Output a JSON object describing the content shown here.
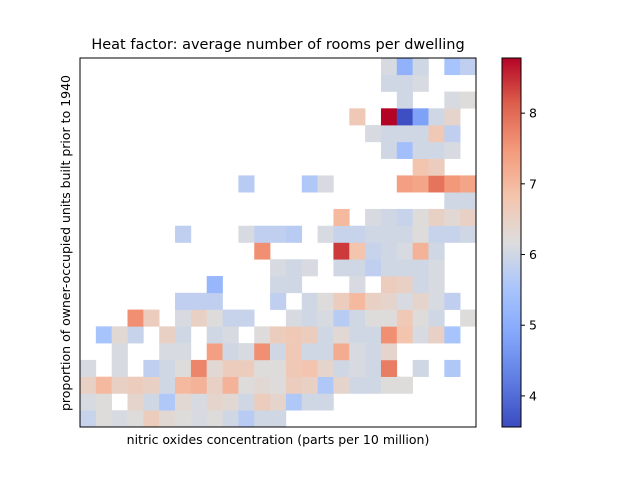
{
  "chart_data": {
    "type": "heatmap",
    "title": "Heat factor: average number of rooms per dwelling",
    "xlabel": "nitric oxides concentration (parts per 10 million)",
    "ylabel": "proportion of owner-occupied units built prior to 1940",
    "x_ticks": "none",
    "y_ticks": "none",
    "colormap": "coolwarm",
    "grid": "off",
    "colorbar": {
      "placement": "right",
      "vmin": 3.56,
      "vmax": 8.78,
      "ticks": [
        "4",
        "5",
        "6",
        "7",
        "8"
      ]
    },
    "n_cols": 25,
    "n_rows": 22,
    "cells": [
      [
        0,
        0,
        5.9
      ],
      [
        1,
        0,
        6.2
      ],
      [
        2,
        0,
        6.1
      ],
      [
        3,
        0,
        6.2
      ],
      [
        4,
        0,
        6.6
      ],
      [
        5,
        0,
        6.3
      ],
      [
        6,
        0,
        6.2
      ],
      [
        7,
        0,
        6.1
      ],
      [
        8,
        0,
        6.2
      ],
      [
        9,
        0,
        6.0
      ],
      [
        10,
        0,
        5.7
      ],
      [
        11,
        0,
        6.0
      ],
      [
        12,
        0,
        6.0
      ],
      [
        0,
        1,
        6.1
      ],
      [
        1,
        1,
        6.2
      ],
      [
        3,
        1,
        6.4
      ],
      [
        4,
        1,
        6.0
      ],
      [
        5,
        1,
        5.6
      ],
      [
        6,
        1,
        6.3
      ],
      [
        7,
        1,
        6.1
      ],
      [
        8,
        1,
        6.4
      ],
      [
        9,
        1,
        6.3
      ],
      [
        10,
        1,
        6.0
      ],
      [
        11,
        1,
        6.6
      ],
      [
        12,
        1,
        6.4
      ],
      [
        13,
        1,
        5.6
      ],
      [
        14,
        1,
        6.0
      ],
      [
        15,
        1,
        6.0
      ],
      [
        0,
        2,
        6.5
      ],
      [
        1,
        2,
        7.0
      ],
      [
        2,
        2,
        6.5
      ],
      [
        3,
        2,
        6.6
      ],
      [
        4,
        2,
        6.5
      ],
      [
        5,
        2,
        6.0
      ],
      [
        6,
        2,
        7.0
      ],
      [
        7,
        2,
        7.1
      ],
      [
        8,
        2,
        6.5
      ],
      [
        9,
        2,
        7.1
      ],
      [
        10,
        2,
        6.2
      ],
      [
        11,
        2,
        6.3
      ],
      [
        12,
        2,
        6.2
      ],
      [
        13,
        2,
        6.6
      ],
      [
        14,
        2,
        6.5
      ],
      [
        15,
        2,
        5.6
      ],
      [
        16,
        2,
        6.4
      ],
      [
        17,
        2,
        6.0
      ],
      [
        18,
        2,
        6.0
      ],
      [
        19,
        2,
        6.2
      ],
      [
        20,
        2,
        6.2
      ],
      [
        0,
        3,
        6.1
      ],
      [
        2,
        3,
        6.1
      ],
      [
        4,
        3,
        5.8
      ],
      [
        5,
        3,
        6.0
      ],
      [
        6,
        3,
        6.2
      ],
      [
        7,
        3,
        7.7
      ],
      [
        8,
        3,
        6.3
      ],
      [
        9,
        3,
        6.6
      ],
      [
        10,
        3,
        6.6
      ],
      [
        11,
        3,
        6.2
      ],
      [
        12,
        3,
        6.2
      ],
      [
        13,
        3,
        6.7
      ],
      [
        14,
        3,
        6.8
      ],
      [
        15,
        3,
        6.4
      ],
      [
        16,
        3,
        6.0
      ],
      [
        17,
        3,
        6.1
      ],
      [
        18,
        3,
        6.0
      ],
      [
        19,
        3,
        7.8
      ],
      [
        21,
        3,
        6.0
      ],
      [
        23,
        3,
        5.6
      ],
      [
        2,
        4,
        6.1
      ],
      [
        5,
        4,
        6.1
      ],
      [
        6,
        4,
        6.1
      ],
      [
        8,
        4,
        7.4
      ],
      [
        9,
        4,
        6.0
      ],
      [
        10,
        4,
        6.1
      ],
      [
        11,
        4,
        7.6
      ],
      [
        12,
        4,
        6.0
      ],
      [
        13,
        4,
        6.7
      ],
      [
        14,
        4,
        6.0
      ],
      [
        15,
        4,
        6.0
      ],
      [
        16,
        4,
        7.2
      ],
      [
        17,
        4,
        6.1
      ],
      [
        18,
        4,
        6.0
      ],
      [
        19,
        4,
        6.4
      ],
      [
        1,
        5,
        5.5
      ],
      [
        2,
        5,
        6.3
      ],
      [
        3,
        5,
        5.9
      ],
      [
        5,
        5,
        6.5
      ],
      [
        6,
        5,
        6.0
      ],
      [
        8,
        5,
        6.0
      ],
      [
        9,
        5,
        6.1
      ],
      [
        11,
        5,
        6.2
      ],
      [
        12,
        5,
        6.6
      ],
      [
        13,
        5,
        6.7
      ],
      [
        14,
        5,
        6.6
      ],
      [
        15,
        5,
        6.0
      ],
      [
        16,
        5,
        6.3
      ],
      [
        17,
        5,
        6.0
      ],
      [
        18,
        5,
        6.0
      ],
      [
        19,
        5,
        7.6
      ],
      [
        20,
        5,
        6.8
      ],
      [
        21,
        5,
        6.1
      ],
      [
        22,
        5,
        6.5
      ],
      [
        23,
        5,
        5.5
      ],
      [
        3,
        6,
        7.6
      ],
      [
        4,
        6,
        6.6
      ],
      [
        6,
        6,
        6.1
      ],
      [
        7,
        6,
        6.5
      ],
      [
        8,
        6,
        6.2
      ],
      [
        9,
        6,
        5.9
      ],
      [
        10,
        6,
        5.9
      ],
      [
        13,
        6,
        6.1
      ],
      [
        14,
        6,
        6.0
      ],
      [
        15,
        6,
        6.1
      ],
      [
        16,
        6,
        5.7
      ],
      [
        17,
        6,
        6.0
      ],
      [
        18,
        6,
        6.2
      ],
      [
        19,
        6,
        6.2
      ],
      [
        20,
        6,
        6.7
      ],
      [
        21,
        6,
        6.2
      ],
      [
        22,
        6,
        6.0
      ],
      [
        24,
        6,
        6.2
      ],
      [
        6,
        7,
        5.8
      ],
      [
        7,
        7,
        5.8
      ],
      [
        8,
        7,
        5.8
      ],
      [
        12,
        7,
        5.8
      ],
      [
        14,
        7,
        6.0
      ],
      [
        15,
        7,
        6.2
      ],
      [
        16,
        7,
        6.6
      ],
      [
        17,
        7,
        7.0
      ],
      [
        18,
        7,
        6.5
      ],
      [
        19,
        7,
        6.4
      ],
      [
        20,
        7,
        6.1
      ],
      [
        21,
        7,
        6.4
      ],
      [
        22,
        7,
        6.1
      ],
      [
        23,
        7,
        5.8
      ],
      [
        8,
        8,
        5.2
      ],
      [
        12,
        8,
        6.0
      ],
      [
        13,
        8,
        6.0
      ],
      [
        17,
        8,
        6.1
      ],
      [
        19,
        8,
        6.6
      ],
      [
        20,
        8,
        6.5
      ],
      [
        21,
        8,
        6.0
      ],
      [
        22,
        8,
        6.1
      ],
      [
        12,
        9,
        6.1
      ],
      [
        13,
        9,
        6.0
      ],
      [
        14,
        9,
        6.1
      ],
      [
        16,
        9,
        6.0
      ],
      [
        17,
        9,
        6.0
      ],
      [
        18,
        9,
        5.8
      ],
      [
        19,
        9,
        6.0
      ],
      [
        20,
        9,
        6.0
      ],
      [
        21,
        9,
        6.0
      ],
      [
        22,
        9,
        6.1
      ],
      [
        11,
        10,
        7.6
      ],
      [
        16,
        10,
        8.4
      ],
      [
        17,
        10,
        6.8
      ],
      [
        18,
        10,
        5.9
      ],
      [
        19,
        10,
        6.0
      ],
      [
        20,
        10,
        6.1
      ],
      [
        21,
        10,
        7.1
      ],
      [
        22,
        10,
        6.0
      ],
      [
        6,
        11,
        5.8
      ],
      [
        10,
        11,
        6.1
      ],
      [
        11,
        11,
        5.8
      ],
      [
        12,
        11,
        5.8
      ],
      [
        13,
        11,
        5.7
      ],
      [
        15,
        11,
        6.1
      ],
      [
        16,
        11,
        5.9
      ],
      [
        17,
        11,
        5.9
      ],
      [
        18,
        11,
        6.0
      ],
      [
        19,
        11,
        6.0
      ],
      [
        20,
        11,
        6.0
      ],
      [
        21,
        11,
        6.2
      ],
      [
        22,
        11,
        5.9
      ],
      [
        23,
        11,
        5.9
      ],
      [
        24,
        11,
        6.0
      ],
      [
        16,
        12,
        7.0
      ],
      [
        18,
        12,
        6.1
      ],
      [
        19,
        12,
        6.0
      ],
      [
        20,
        12,
        5.9
      ],
      [
        21,
        12,
        6.2
      ],
      [
        22,
        12,
        6.5
      ],
      [
        23,
        12,
        6.3
      ],
      [
        24,
        12,
        6.5
      ],
      [
        23,
        13,
        6.0
      ],
      [
        24,
        13,
        6.0
      ],
      [
        10,
        14,
        5.7
      ],
      [
        14,
        14,
        5.6
      ],
      [
        15,
        14,
        6.1
      ],
      [
        20,
        14,
        7.4
      ],
      [
        21,
        14,
        7.3
      ],
      [
        22,
        14,
        7.9
      ],
      [
        23,
        14,
        7.5
      ],
      [
        24,
        14,
        7.3
      ],
      [
        21,
        15,
        6.8
      ],
      [
        22,
        15,
        6.6
      ],
      [
        19,
        16,
        6.0
      ],
      [
        20,
        16,
        5.4
      ],
      [
        21,
        16,
        6.0
      ],
      [
        22,
        16,
        6.0
      ],
      [
        23,
        16,
        6.1
      ],
      [
        18,
        17,
        6.1
      ],
      [
        19,
        17,
        6.0
      ],
      [
        20,
        17,
        6.0
      ],
      [
        21,
        17,
        6.0
      ],
      [
        22,
        17,
        6.7
      ],
      [
        23,
        17,
        5.8
      ],
      [
        17,
        18,
        6.7
      ],
      [
        19,
        18,
        8.8
      ],
      [
        20,
        18,
        3.6
      ],
      [
        21,
        18,
        4.8
      ],
      [
        22,
        18,
        6.0
      ],
      [
        23,
        18,
        6.4
      ],
      [
        20,
        19,
        6.0
      ],
      [
        23,
        19,
        6.1
      ],
      [
        24,
        19,
        6.2
      ],
      [
        19,
        20,
        6.0
      ],
      [
        20,
        20,
        6.0
      ],
      [
        21,
        20,
        6.1
      ],
      [
        19,
        21,
        6.1
      ],
      [
        20,
        21,
        5.1
      ],
      [
        21,
        21,
        6.0
      ],
      [
        23,
        21,
        5.5
      ],
      [
        24,
        21,
        5.8
      ]
    ]
  }
}
